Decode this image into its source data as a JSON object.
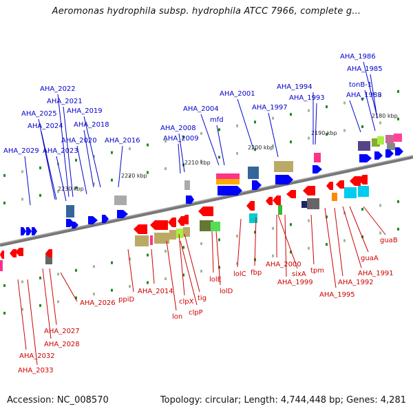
{
  "title": "Aeromonas hydrophila subsp. hydrophila ATCC 7966, complete g...",
  "footer": {
    "accession": "Accession: NC_008570",
    "topology": "Topology: circular; Length: 4,744,448 bp; Genes: 4,281"
  },
  "colors": {
    "forward_label": "#0000cc",
    "reverse_label": "#cc0000",
    "forward_gene": "#0000ff",
    "reverse_gene": "#ff0000",
    "backbone": "#777777"
  },
  "scale_ticks": [
    "2180 kbp",
    "2190 kbp",
    "2200 kbp",
    "2210 kbp",
    "2220 kbp",
    "2230 kbp"
  ],
  "forward_genes": [
    "AHA_1986",
    "AHA_1985",
    "tonB-1",
    "AHA_1988",
    "AHA_1994",
    "AHA_1993",
    "AHA_2001",
    "AHA_1997",
    "AHA_2004",
    "mfd",
    "AHA_2008",
    "AHA_2009",
    "AHA_2016",
    "AHA_2022",
    "AHA_2021",
    "AHA_2019",
    "AHA_2018",
    "AHA_2025",
    "AHA_2024",
    "AHA_2020",
    "AHA_2023",
    "AHA_2029"
  ],
  "reverse_genes": [
    "guaB",
    "guaA",
    "AHA_1991",
    "AHA_1992",
    "AHA_1995",
    "tpm",
    "sixA",
    "AHA_2000",
    "AHA_1999",
    "fbp",
    "lolC",
    "lolE",
    "lolD",
    "tig",
    "clpX",
    "clpP",
    "lon",
    "AHA_2014",
    "ppiD",
    "AHA_2026",
    "AHA_2027",
    "AHA_2028",
    "AHA_2032",
    "AHA_2033"
  ]
}
